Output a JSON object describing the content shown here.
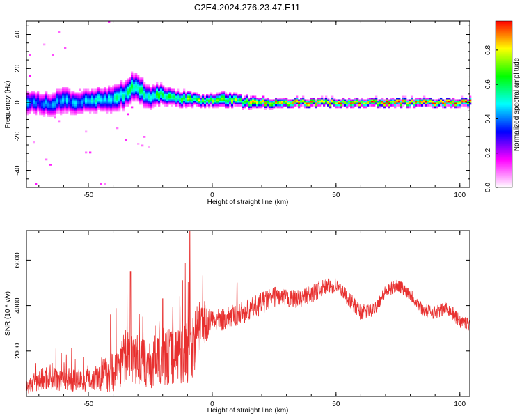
{
  "title": "C2E4.2024.276.23.47.E11",
  "chart_data": [
    {
      "type": "heatmap",
      "xlabel": "Height of straight line (km)",
      "ylabel": "Frequency (Hz)",
      "xlim": [
        -75,
        104
      ],
      "ylim": [
        -50,
        48
      ],
      "x_ticks": [
        -50,
        0,
        50,
        100
      ],
      "y_ticks": [
        -40,
        -20,
        0,
        20,
        40
      ],
      "colorbar": {
        "label": "Normalized spectral amplitude",
        "range": [
          0,
          0.97
        ],
        "ticks": [
          "0.0",
          "0.2",
          "0.4",
          "0.6",
          "0.8"
        ],
        "colors": [
          "#ffffff",
          "#ff00ff",
          "#0000ff",
          "#00ffff",
          "#00ff00",
          "#ffff00",
          "#ff0000"
        ]
      },
      "ridge": {
        "x": [
          -75,
          -70,
          -65,
          -60,
          -55,
          -50,
          -45,
          -40,
          -35,
          -32,
          -30,
          -25,
          -20,
          -15,
          -10,
          -5,
          0,
          5,
          10,
          15,
          20,
          30,
          40,
          50,
          60,
          70,
          80,
          90,
          100,
          104
        ],
        "freq": [
          1,
          0,
          -1,
          1,
          0,
          1,
          2,
          2,
          5,
          10,
          8,
          3,
          5,
          2,
          2,
          1,
          1,
          2,
          1,
          0,
          0,
          0,
          0,
          0,
          0,
          0,
          0,
          0,
          0,
          0
        ],
        "spread_hz": [
          6,
          6,
          6,
          7,
          6,
          6,
          6,
          7,
          7,
          7,
          7,
          6,
          5,
          4,
          4,
          3,
          3,
          4,
          3,
          3,
          2.5,
          2.2,
          2,
          2,
          2,
          2,
          2,
          2,
          2,
          2
        ],
        "peak_amplitude": [
          0.45,
          0.4,
          0.45,
          0.5,
          0.45,
          0.5,
          0.5,
          0.55,
          0.55,
          0.6,
          0.6,
          0.6,
          0.65,
          0.7,
          0.7,
          0.75,
          0.75,
          0.8,
          0.75,
          0.8,
          0.85,
          0.9,
          0.9,
          0.92,
          0.92,
          0.95,
          0.95,
          0.95,
          0.97,
          0.97
        ]
      }
    },
    {
      "type": "line",
      "xlabel": "Height of straight line (km)",
      "ylabel": "SNR (10 * v/v)",
      "xlim": [
        -75,
        104
      ],
      "ylim": [
        0,
        7300
      ],
      "x_ticks": [
        -50,
        0,
        50,
        100
      ],
      "y_ticks": [
        2000,
        4000,
        6000
      ],
      "series": [
        {
          "color": "#e8302f",
          "envelope_x": [
            -75,
            -70,
            -65,
            -60,
            -55,
            -50,
            -45,
            -40,
            -35,
            -30,
            -25,
            -20,
            -15,
            -10,
            -7,
            -5,
            0,
            5,
            10,
            15,
            20,
            25,
            30,
            35,
            40,
            45,
            50,
            55,
            60,
            65,
            70,
            75,
            80,
            85,
            90,
            95,
            100,
            104
          ],
          "envelope_y": [
            400,
            700,
            900,
            800,
            700,
            800,
            900,
            1100,
            1800,
            1600,
            1300,
            1800,
            1800,
            2000,
            2500,
            3100,
            3300,
            3400,
            3600,
            3800,
            4100,
            4400,
            4300,
            4300,
            4500,
            4800,
            4900,
            4300,
            3700,
            3800,
            4600,
            4900,
            4500,
            3800,
            3700,
            3900,
            3300,
            3200
          ],
          "noise_amplitude": [
            300,
            500,
            600,
            600,
            500,
            600,
            700,
            900,
            1200,
            1100,
            1000,
            1300,
            1300,
            1500,
            1500,
            1100,
            500,
            500,
            500,
            500,
            500,
            450,
            400,
            400,
            400,
            350,
            350,
            350,
            350,
            300,
            300,
            300,
            300,
            300,
            300,
            300,
            300,
            300
          ],
          "spikes": [
            {
              "x": -41,
              "y": 3600
            },
            {
              "x": -33,
              "y": 5500
            },
            {
              "x": -28,
              "y": 3500
            },
            {
              "x": -23,
              "y": 3100
            },
            {
              "x": -20,
              "y": 4300
            },
            {
              "x": -12,
              "y": 5100
            },
            {
              "x": -9,
              "y": 7300
            },
            {
              "x": 10,
              "y": 5000
            }
          ]
        }
      ]
    }
  ]
}
